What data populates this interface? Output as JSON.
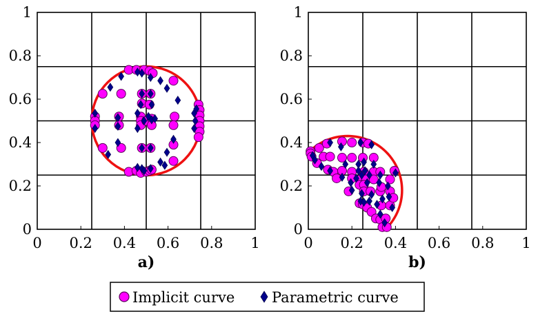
{
  "legend": {
    "items": [
      {
        "label": "Implicit curve",
        "marker": "circle",
        "color": "#ff00ff"
      },
      {
        "label": "Parametric curve",
        "marker": "diamond",
        "color": "#00008b"
      }
    ],
    "placement": "bottom-center"
  },
  "colors": {
    "implicit_fill": "#ff00ff",
    "implicit_stroke": "#5a005a",
    "parametric_fill": "#00008b",
    "curve": "#ee1111",
    "grid": "#000000"
  },
  "chart_data": [
    {
      "type": "scatter",
      "sublabel": "a)",
      "xlim": [
        0,
        1
      ],
      "ylim": [
        0,
        1
      ],
      "xticks": [
        "0",
        "0.2",
        "0.4",
        "0.6",
        "0.8",
        "1"
      ],
      "yticks": [
        "0",
        "0.2",
        "0.4",
        "0.6",
        "0.8",
        "1"
      ],
      "grid_lines": [
        0.25,
        0.5,
        0.75
      ],
      "curve": {
        "kind": "circle",
        "cx": 0.5,
        "cy": 0.5,
        "r": 0.25
      },
      "series": [
        {
          "name": "Implicit curve",
          "marker": "circle",
          "points": [
            [
              0.42,
              0.735
            ],
            [
              0.455,
              0.735
            ],
            [
              0.49,
              0.735
            ],
            [
              0.515,
              0.73
            ],
            [
              0.53,
              0.72
            ],
            [
              0.3,
              0.625
            ],
            [
              0.385,
              0.625
            ],
            [
              0.48,
              0.625
            ],
            [
              0.52,
              0.625
            ],
            [
              0.625,
              0.685
            ],
            [
              0.48,
              0.58
            ],
            [
              0.515,
              0.575
            ],
            [
              0.63,
              0.52
            ],
            [
              0.625,
              0.48
            ],
            [
              0.265,
              0.52
            ],
            [
              0.265,
              0.5
            ],
            [
              0.265,
              0.48
            ],
            [
              0.375,
              0.52
            ],
            [
              0.375,
              0.48
            ],
            [
              0.475,
              0.52
            ],
            [
              0.475,
              0.5
            ],
            [
              0.475,
              0.48
            ],
            [
              0.5,
              0.5
            ],
            [
              0.525,
              0.51
            ],
            [
              0.525,
              0.48
            ],
            [
              0.74,
              0.575
            ],
            [
              0.745,
              0.55
            ],
            [
              0.745,
              0.525
            ],
            [
              0.745,
              0.5
            ],
            [
              0.745,
              0.475
            ],
            [
              0.745,
              0.45
            ],
            [
              0.74,
              0.425
            ],
            [
              0.3,
              0.375
            ],
            [
              0.385,
              0.375
            ],
            [
              0.48,
              0.375
            ],
            [
              0.52,
              0.375
            ],
            [
              0.625,
              0.39
            ],
            [
              0.625,
              0.315
            ],
            [
              0.42,
              0.265
            ],
            [
              0.455,
              0.27
            ],
            [
              0.475,
              0.26
            ],
            [
              0.5,
              0.265
            ],
            [
              0.515,
              0.27
            ],
            [
              0.525,
              0.275
            ]
          ]
        },
        {
          "name": "Parametric curve",
          "marker": "diamond",
          "points": [
            [
              0.335,
              0.655
            ],
            [
              0.385,
              0.705
            ],
            [
              0.46,
              0.725
            ],
            [
              0.48,
              0.72
            ],
            [
              0.52,
              0.7
            ],
            [
              0.565,
              0.685
            ],
            [
              0.595,
              0.65
            ],
            [
              0.645,
              0.595
            ],
            [
              0.48,
              0.625
            ],
            [
              0.52,
              0.625
            ],
            [
              0.475,
              0.575
            ],
            [
              0.525,
              0.575
            ],
            [
              0.265,
              0.535
            ],
            [
              0.265,
              0.465
            ],
            [
              0.37,
              0.515
            ],
            [
              0.37,
              0.475
            ],
            [
              0.46,
              0.535
            ],
            [
              0.46,
              0.465
            ],
            [
              0.49,
              0.5
            ],
            [
              0.51,
              0.52
            ],
            [
              0.525,
              0.505
            ],
            [
              0.54,
              0.51
            ],
            [
              0.72,
              0.535
            ],
            [
              0.725,
              0.5
            ],
            [
              0.72,
              0.465
            ],
            [
              0.73,
              0.555
            ],
            [
              0.325,
              0.345
            ],
            [
              0.37,
              0.4
            ],
            [
              0.48,
              0.375
            ],
            [
              0.52,
              0.375
            ],
            [
              0.595,
              0.355
            ],
            [
              0.625,
              0.415
            ],
            [
              0.46,
              0.285
            ],
            [
              0.48,
              0.28
            ],
            [
              0.49,
              0.27
            ],
            [
              0.52,
              0.28
            ],
            [
              0.565,
              0.31
            ],
            [
              0.585,
              0.295
            ]
          ]
        }
      ]
    },
    {
      "type": "scatter",
      "sublabel": "b)",
      "xlim": [
        0,
        1
      ],
      "ylim": [
        0,
        1
      ],
      "xticks": [
        "0",
        "0.2",
        "0.4",
        "0.6",
        "0.8",
        "1"
      ],
      "yticks": [
        "0",
        "0.2",
        "0.4",
        "0.6",
        "0.8",
        "1"
      ],
      "grid_lines": [
        0.25,
        0.5,
        0.75
      ],
      "curve": {
        "kind": "half-ellipse",
        "center": [
          0.18,
          0.18
        ],
        "a": 0.25,
        "b": 0.25,
        "angle_deg": 45
      },
      "series": [
        {
          "name": "Implicit curve",
          "marker": "circle",
          "points": [
            [
              0.01,
              0.36
            ],
            [
              0.01,
              0.35
            ],
            [
              0.05,
              0.375
            ],
            [
              0.085,
              0.395
            ],
            [
              0.155,
              0.405
            ],
            [
              0.2,
              0.4
            ],
            [
              0.25,
              0.4
            ],
            [
              0.275,
              0.395
            ],
            [
              0.015,
              0.335
            ],
            [
              0.07,
              0.335
            ],
            [
              0.1,
              0.335
            ],
            [
              0.155,
              0.33
            ],
            [
              0.2,
              0.33
            ],
            [
              0.25,
              0.33
            ],
            [
              0.3,
              0.33
            ],
            [
              0.04,
              0.305
            ],
            [
              0.09,
              0.275
            ],
            [
              0.115,
              0.265
            ],
            [
              0.155,
              0.27
            ],
            [
              0.2,
              0.265
            ],
            [
              0.255,
              0.265
            ],
            [
              0.3,
              0.265
            ],
            [
              0.33,
              0.265
            ],
            [
              0.13,
              0.235
            ],
            [
              0.2,
              0.235
            ],
            [
              0.245,
              0.235
            ],
            [
              0.265,
              0.23
            ],
            [
              0.3,
              0.23
            ],
            [
              0.375,
              0.23
            ],
            [
              0.235,
              0.205
            ],
            [
              0.255,
              0.205
            ],
            [
              0.185,
              0.175
            ],
            [
              0.255,
              0.175
            ],
            [
              0.285,
              0.175
            ],
            [
              0.33,
              0.175
            ],
            [
              0.375,
              0.175
            ],
            [
              0.235,
              0.12
            ],
            [
              0.25,
              0.115
            ],
            [
              0.27,
              0.1
            ],
            [
              0.29,
              0.08
            ],
            [
              0.31,
              0.05
            ],
            [
              0.33,
              0.045
            ],
            [
              0.355,
              0.05
            ],
            [
              0.335,
              0.11
            ],
            [
              0.375,
              0.11
            ],
            [
              0.39,
              0.145
            ],
            [
              0.34,
              0.01
            ],
            [
              0.36,
              0.01
            ],
            [
              0.395,
              0.27
            ],
            [
              0.335,
              0.195
            ]
          ]
        },
        {
          "name": "Parametric curve",
          "marker": "diamond",
          "points": [
            [
              0.02,
              0.34
            ],
            [
              0.03,
              0.32
            ],
            [
              0.1,
              0.4
            ],
            [
              0.15,
              0.38
            ],
            [
              0.24,
              0.4
            ],
            [
              0.29,
              0.39
            ],
            [
              0.06,
              0.29
            ],
            [
              0.1,
              0.27
            ],
            [
              0.17,
              0.3
            ],
            [
              0.23,
              0.3
            ],
            [
              0.255,
              0.31
            ],
            [
              0.3,
              0.3
            ],
            [
              0.155,
              0.24
            ],
            [
              0.23,
              0.27
            ],
            [
              0.245,
              0.25
            ],
            [
              0.26,
              0.27
            ],
            [
              0.28,
              0.25
            ],
            [
              0.33,
              0.25
            ],
            [
              0.195,
              0.215
            ],
            [
              0.22,
              0.235
            ],
            [
              0.27,
              0.215
            ],
            [
              0.325,
              0.215
            ],
            [
              0.365,
              0.2
            ],
            [
              0.2,
              0.18
            ],
            [
              0.245,
              0.165
            ],
            [
              0.29,
              0.16
            ],
            [
              0.34,
              0.14
            ],
            [
              0.37,
              0.15
            ],
            [
              0.24,
              0.13
            ],
            [
              0.255,
              0.125
            ],
            [
              0.28,
              0.13
            ],
            [
              0.315,
              0.115
            ],
            [
              0.33,
              0.07
            ],
            [
              0.35,
              0.03
            ],
            [
              0.385,
              0.1
            ],
            [
              0.4,
              0.26
            ]
          ]
        }
      ]
    }
  ]
}
